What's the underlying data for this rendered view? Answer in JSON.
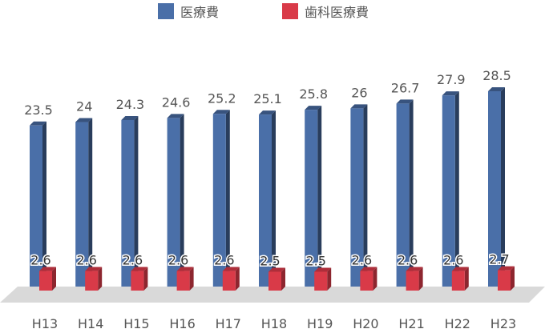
{
  "chart_data": {
    "type": "bar",
    "categories": [
      "H13",
      "H14",
      "H15",
      "H16",
      "H17",
      "H18",
      "H19",
      "H20",
      "H21",
      "H22",
      "H23"
    ],
    "series": [
      {
        "name": "医療費",
        "values": [
          23.5,
          24,
          24.3,
          24.6,
          25.2,
          25.1,
          25.8,
          26,
          26.7,
          27.9,
          28.5
        ],
        "labels": [
          "23.5",
          "24",
          "24.3",
          "24.6",
          "25.2",
          "25.1",
          "25.8",
          "26",
          "26.7",
          "27.9",
          "28.5"
        ],
        "color": "#4a6fa8"
      },
      {
        "name": "歯科医療費",
        "values": [
          2.6,
          2.6,
          2.6,
          2.6,
          2.6,
          2.5,
          2.5,
          2.6,
          2.6,
          2.6,
          2.7
        ],
        "labels": [
          "2.6",
          "2.6",
          "2.6",
          "2.6",
          "2.6",
          "2.5",
          "2.5",
          "2.6",
          "2.6",
          "2.6",
          "2.7"
        ],
        "color": "#d93a48"
      }
    ],
    "legend_position": "top-center",
    "gridlines": false,
    "ylim": [
      0,
      30
    ],
    "floor_color": "#d9d9d9"
  }
}
